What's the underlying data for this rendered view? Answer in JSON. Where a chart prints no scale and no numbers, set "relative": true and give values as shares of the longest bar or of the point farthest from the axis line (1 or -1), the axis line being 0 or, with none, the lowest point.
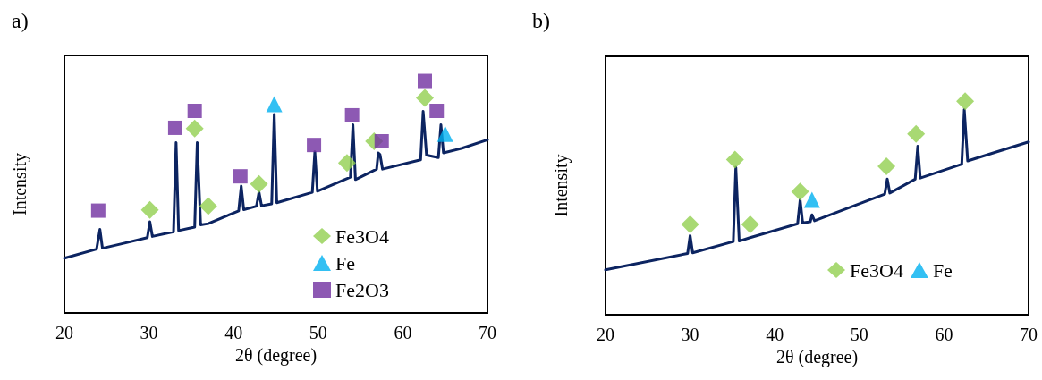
{
  "chart_data": [
    {
      "type": "line",
      "title": "a)",
      "xlabel": "2θ (degree)",
      "ylabel": "Intensity",
      "relative": true,
      "xlim": [
        20,
        70
      ],
      "xticks": [
        20,
        30,
        40,
        50,
        60,
        70
      ],
      "tick_labels": "x",
      "grid": false,
      "legend": "bottom right",
      "series": [
        {
          "color": "#0c2461",
          "marker": "none",
          "line_style": "solid",
          "x": [
            20,
            23.8,
            24.2,
            24.5,
            27,
            29.8,
            30.1,
            30.4,
            32.9,
            33.2,
            33.5,
            35.4,
            35.7,
            36.1,
            37,
            40.6,
            40.9,
            41.2,
            42.7,
            43.0,
            43.3,
            44.5,
            44.8,
            45.1,
            49.3,
            49.6,
            49.9,
            53.8,
            54.1,
            54.4,
            56.9,
            57.1,
            57.3,
            57.6,
            62.1,
            62.4,
            62.8,
            64.2,
            64.5,
            64.8,
            67,
            70
          ],
          "values": [
            0.236,
            0.275,
            0.36,
            0.279,
            0.3,
            0.325,
            0.393,
            0.33,
            0.35,
            0.734,
            0.355,
            0.37,
            0.734,
            0.38,
            0.385,
            0.44,
            0.547,
            0.445,
            0.46,
            0.521,
            0.462,
            0.47,
            0.856,
            0.475,
            0.52,
            0.695,
            0.525,
            0.585,
            0.811,
            0.575,
            0.62,
            0.69,
            0.683,
            0.62,
            0.66,
            0.869,
            0.68,
            0.67,
            0.811,
            0.69,
            0.71,
            0.746
          ]
        },
        {
          "type": "scatter",
          "name": "Fe3O4",
          "color": "#92d050",
          "marker": "diamond",
          "x": [
            30.1,
            35.4,
            37.0,
            43.0,
            53.4,
            56.6,
            62.6
          ],
          "values": [
            0.444,
            0.795,
            0.461,
            0.556,
            0.647,
            0.74,
            0.927
          ]
        },
        {
          "type": "scatter",
          "name": "Fe",
          "color": "#00b0f0",
          "marker": "triangle",
          "x": [
            44.8,
            65.0
          ],
          "values": [
            0.9,
            0.772
          ]
        },
        {
          "type": "scatter",
          "name": "Fe2O3",
          "color": "#7030a0",
          "marker": "square",
          "x": [
            24.0,
            33.1,
            35.4,
            40.8,
            49.5,
            54.0,
            57.5,
            62.6,
            64.0
          ],
          "values": [
            0.441,
            0.798,
            0.871,
            0.589,
            0.724,
            0.852,
            0.74,
            1.0,
            0.871
          ]
        }
      ]
    },
    {
      "type": "line",
      "title": "b)",
      "xlabel": "2θ (degree)",
      "ylabel": "Intensity",
      "relative": true,
      "xlim": [
        20,
        70
      ],
      "xticks": [
        20,
        30,
        40,
        50,
        60,
        70
      ],
      "tick_labels": "x",
      "grid": false,
      "legend": "bottom right",
      "series": [
        {
          "color": "#0c2461",
          "marker": "none",
          "line_style": "solid",
          "x": [
            20,
            29.7,
            30.0,
            30.3,
            35.1,
            35.4,
            35.8,
            37,
            42.7,
            43.0,
            43.3,
            44.2,
            44.4,
            44.7,
            53.0,
            53.3,
            53.6,
            56.6,
            56.9,
            57.2,
            62.1,
            62.4,
            62.8,
            66,
            70
          ],
          "values": [
            0.21,
            0.287,
            0.371,
            0.29,
            0.343,
            0.691,
            0.345,
            0.36,
            0.426,
            0.538,
            0.43,
            0.435,
            0.468,
            0.44,
            0.565,
            0.635,
            0.57,
            0.635,
            0.789,
            0.64,
            0.705,
            0.961,
            0.72,
            0.76,
            0.809
          ]
        },
        {
          "type": "scatter",
          "name": "Fe3O4",
          "color": "#92d050",
          "marker": "diamond",
          "x": [
            30.0,
            35.3,
            37.1,
            43.0,
            53.2,
            56.7,
            62.5
          ],
          "values": [
            0.423,
            0.726,
            0.423,
            0.577,
            0.695,
            0.847,
            1.0
          ]
        },
        {
          "type": "scatter",
          "name": "Fe",
          "color": "#00b0f0",
          "marker": "triangle",
          "x": [
            44.4
          ],
          "values": [
            0.538
          ]
        }
      ]
    }
  ]
}
